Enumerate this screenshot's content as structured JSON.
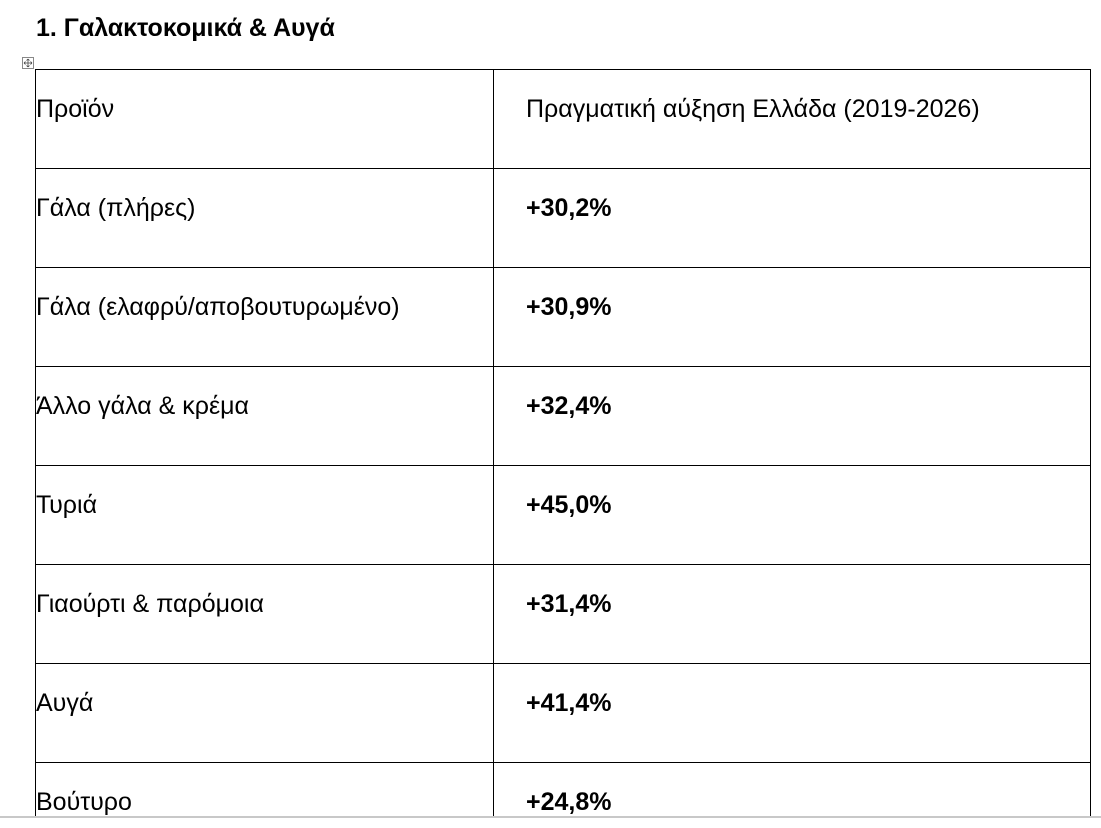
{
  "header": {
    "title": "1. Γαλακτοκομικά & Αυγά"
  },
  "table": {
    "columns": [
      "Προϊόν",
      "Πραγματική αύξηση Ελλάδα (2019-2026)"
    ],
    "rows": [
      [
        "Γάλα (πλήρες)",
        "+30,2%"
      ],
      [
        "Γάλα (ελαφρύ/αποβουτυρωμένο)",
        "+30,9%"
      ],
      [
        "Άλλο γάλα & κρέμα",
        "+32,4%"
      ],
      [
        "Τυριά",
        "+45,0%"
      ],
      [
        "Γιαούρτι & παρόμοια",
        "+31,4%"
      ],
      [
        "Αυγά",
        "+41,4%"
      ],
      [
        "Βούτυρο",
        "+24,8%"
      ]
    ]
  }
}
